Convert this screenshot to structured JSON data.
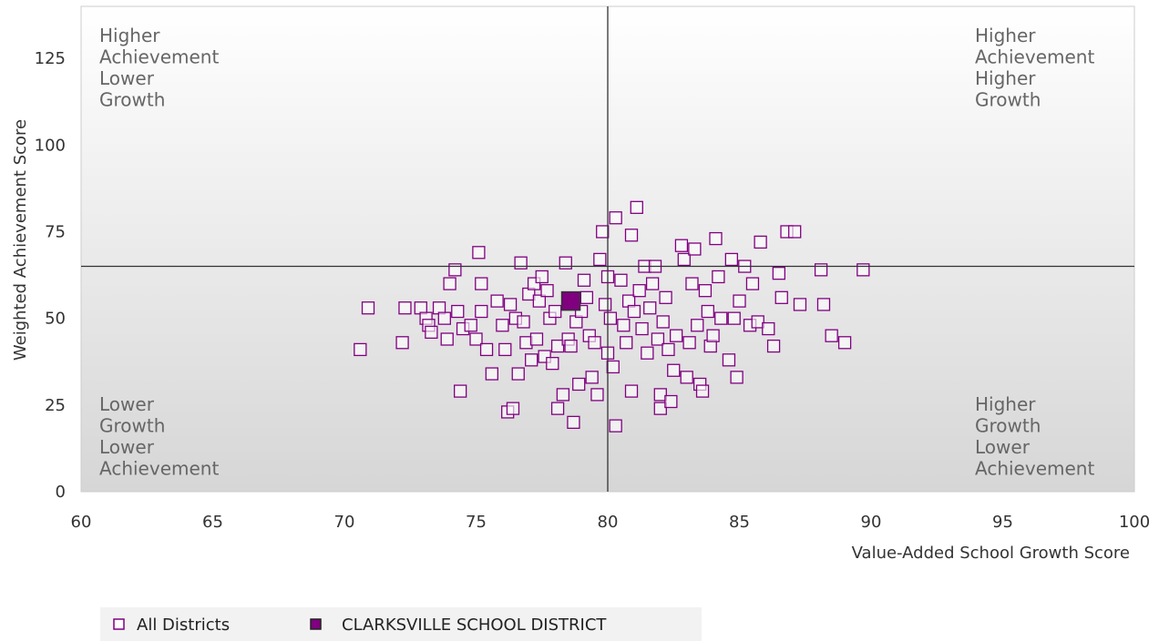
{
  "chart_data": {
    "type": "scatter",
    "title": "",
    "xlabel": "Value-Added School Growth Score",
    "ylabel": "Weighted Achievement Score",
    "xlim": [
      60,
      100
    ],
    "ylim": [
      0,
      140
    ],
    "x_ticks": [
      60,
      65,
      70,
      75,
      80,
      85,
      90,
      95,
      100
    ],
    "y_ticks": [
      0,
      25,
      50,
      75,
      100,
      125
    ],
    "grid": false,
    "reference_lines": {
      "x": 80,
      "y": 65
    },
    "quadrant_labels": {
      "top_left": [
        "Higher",
        "Achievement",
        "Lower",
        "Growth"
      ],
      "top_right": [
        "Higher",
        "Achievement",
        "Higher",
        "Growth"
      ],
      "bottom_left": [
        "Lower",
        "Growth",
        "Lower",
        "Achievement"
      ],
      "bottom_right": [
        "Higher",
        "Growth",
        "Lower",
        "Achievement"
      ]
    },
    "legend_position": "bottom-left",
    "colors": {
      "series": "#800080",
      "background_top": "#ffffff",
      "background_bottom": "#d6d6d6",
      "lines": "#333333"
    },
    "series": [
      {
        "name": "All Districts",
        "marker": "hollow-square",
        "points": [
          [
            70.6,
            41
          ],
          [
            70.9,
            53
          ],
          [
            72.2,
            43
          ],
          [
            72.3,
            53
          ],
          [
            72.9,
            53
          ],
          [
            73.1,
            50
          ],
          [
            73.2,
            48
          ],
          [
            73.3,
            46
          ],
          [
            73.6,
            53
          ],
          [
            73.8,
            50
          ],
          [
            73.9,
            44
          ],
          [
            74.0,
            60
          ],
          [
            74.2,
            64
          ],
          [
            74.3,
            52
          ],
          [
            74.4,
            29
          ],
          [
            74.5,
            47
          ],
          [
            74.8,
            48
          ],
          [
            75.0,
            44
          ],
          [
            75.1,
            69
          ],
          [
            75.2,
            52
          ],
          [
            75.2,
            60
          ],
          [
            75.4,
            41
          ],
          [
            75.6,
            34
          ],
          [
            75.8,
            55
          ],
          [
            76.0,
            48
          ],
          [
            76.1,
            41
          ],
          [
            76.2,
            23
          ],
          [
            76.3,
            54
          ],
          [
            76.4,
            24
          ],
          [
            76.5,
            50
          ],
          [
            76.6,
            34
          ],
          [
            76.7,
            66
          ],
          [
            76.8,
            49
          ],
          [
            76.9,
            43
          ],
          [
            77.0,
            57
          ],
          [
            77.1,
            38
          ],
          [
            77.2,
            60
          ],
          [
            77.3,
            44
          ],
          [
            77.4,
            55
          ],
          [
            77.5,
            62
          ],
          [
            77.6,
            39
          ],
          [
            77.7,
            58
          ],
          [
            77.8,
            50
          ],
          [
            77.9,
            37
          ],
          [
            78.0,
            52
          ],
          [
            78.1,
            24
          ],
          [
            78.1,
            42
          ],
          [
            78.3,
            28
          ],
          [
            78.4,
            66
          ],
          [
            78.5,
            44
          ],
          [
            78.6,
            42
          ],
          [
            78.7,
            20
          ],
          [
            78.8,
            49
          ],
          [
            78.9,
            31
          ],
          [
            79.0,
            52
          ],
          [
            79.1,
            61
          ],
          [
            79.2,
            56
          ],
          [
            79.3,
            45
          ],
          [
            79.4,
            33
          ],
          [
            79.5,
            43
          ],
          [
            79.6,
            28
          ],
          [
            79.7,
            67
          ],
          [
            79.8,
            75
          ],
          [
            79.9,
            54
          ],
          [
            80.0,
            40
          ],
          [
            80.0,
            62
          ],
          [
            80.1,
            50
          ],
          [
            80.2,
            36
          ],
          [
            80.3,
            79
          ],
          [
            80.3,
            19
          ],
          [
            80.5,
            61
          ],
          [
            80.6,
            48
          ],
          [
            80.7,
            43
          ],
          [
            80.8,
            55
          ],
          [
            80.9,
            29
          ],
          [
            80.9,
            74
          ],
          [
            81.0,
            52
          ],
          [
            81.1,
            82
          ],
          [
            81.2,
            58
          ],
          [
            81.3,
            47
          ],
          [
            81.4,
            65
          ],
          [
            81.5,
            40
          ],
          [
            81.6,
            53
          ],
          [
            81.7,
            60
          ],
          [
            81.8,
            65
          ],
          [
            81.9,
            44
          ],
          [
            82.0,
            28
          ],
          [
            82.0,
            24
          ],
          [
            82.1,
            49
          ],
          [
            82.2,
            56
          ],
          [
            82.3,
            41
          ],
          [
            82.4,
            26
          ],
          [
            82.5,
            35
          ],
          [
            82.6,
            45
          ],
          [
            82.8,
            71
          ],
          [
            82.9,
            67
          ],
          [
            83.0,
            33
          ],
          [
            83.1,
            43
          ],
          [
            83.2,
            60
          ],
          [
            83.3,
            70
          ],
          [
            83.4,
            48
          ],
          [
            83.5,
            31
          ],
          [
            83.6,
            29
          ],
          [
            83.7,
            58
          ],
          [
            83.8,
            52
          ],
          [
            83.9,
            42
          ],
          [
            84.0,
            45
          ],
          [
            84.1,
            73
          ],
          [
            84.2,
            62
          ],
          [
            84.3,
            50
          ],
          [
            84.6,
            38
          ],
          [
            84.7,
            67
          ],
          [
            84.8,
            50
          ],
          [
            84.9,
            33
          ],
          [
            85.0,
            55
          ],
          [
            85.2,
            65
          ],
          [
            85.4,
            48
          ],
          [
            85.5,
            60
          ],
          [
            85.7,
            49
          ],
          [
            85.8,
            72
          ],
          [
            86.1,
            47
          ],
          [
            86.3,
            42
          ],
          [
            86.5,
            63
          ],
          [
            86.6,
            56
          ],
          [
            86.8,
            75
          ],
          [
            87.1,
            75
          ],
          [
            87.3,
            54
          ],
          [
            88.1,
            64
          ],
          [
            88.2,
            54
          ],
          [
            88.5,
            45
          ],
          [
            89.0,
            43
          ],
          [
            89.7,
            64
          ]
        ]
      },
      {
        "name": "CLARKSVILLE SCHOOL DISTRICT",
        "marker": "filled-square",
        "points": [
          [
            78.6,
            55
          ]
        ]
      }
    ]
  }
}
